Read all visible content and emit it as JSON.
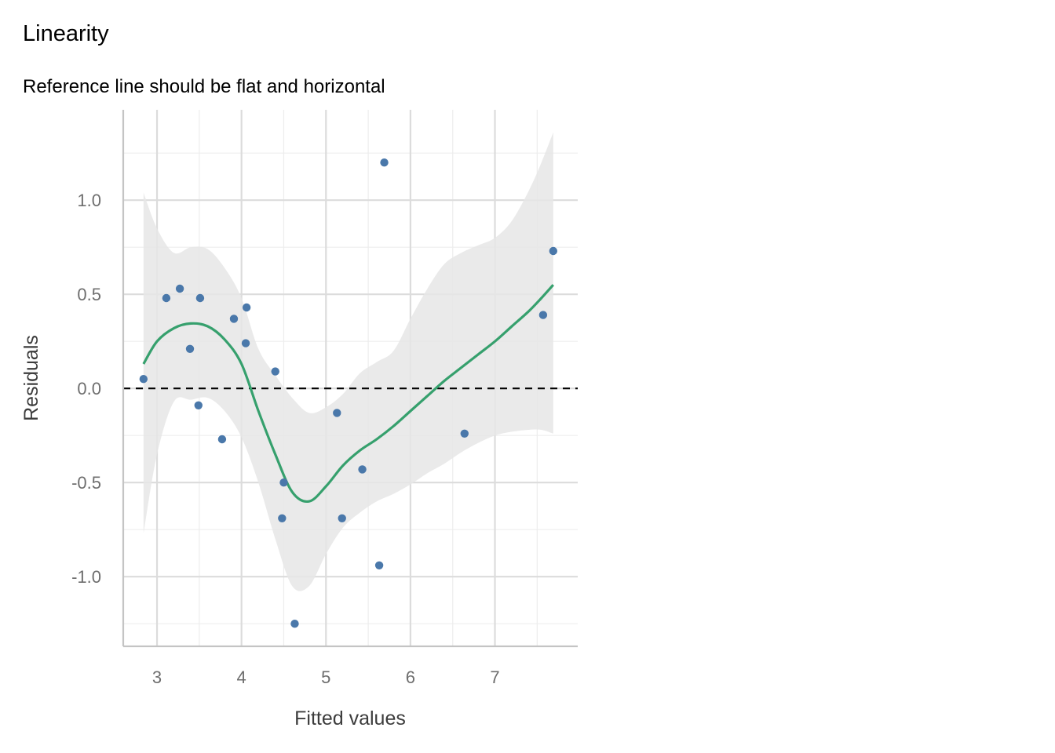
{
  "chart_data": {
    "type": "scatter",
    "title": "Linearity",
    "subtitle": "Reference line should be flat and horizontal",
    "xlabel": "Fitted values",
    "ylabel": "Residuals",
    "xlim": [
      2.6,
      7.98
    ],
    "ylim": [
      -1.37,
      1.48
    ],
    "x_ticks": [
      3,
      4,
      5,
      6,
      7
    ],
    "x_tick_labels": [
      "3",
      "4",
      "5",
      "6",
      "7"
    ],
    "y_ticks": [
      -1.0,
      -0.5,
      0.0,
      0.5,
      1.0
    ],
    "y_tick_labels": [
      "-1.0",
      "-0.5",
      "0.0",
      "0.5",
      "1.0"
    ],
    "grid": true,
    "reference_line": {
      "y": 0,
      "style": "dashed"
    },
    "colors": {
      "points": "#4a78aa",
      "smooth": "#36a06d",
      "band": "#e6e6e6",
      "grid_major": "#dcdcdc",
      "grid_minor": "#ededed",
      "axis": "#c4c4c4",
      "reference": "#000000"
    },
    "points": [
      {
        "x": 2.84,
        "y": 0.05
      },
      {
        "x": 3.11,
        "y": 0.48
      },
      {
        "x": 3.27,
        "y": 0.53
      },
      {
        "x": 3.39,
        "y": 0.21
      },
      {
        "x": 3.49,
        "y": -0.09
      },
      {
        "x": 3.51,
        "y": 0.48
      },
      {
        "x": 3.77,
        "y": -0.27
      },
      {
        "x": 3.91,
        "y": 0.37
      },
      {
        "x": 4.05,
        "y": 0.24
      },
      {
        "x": 4.06,
        "y": 0.43
      },
      {
        "x": 4.4,
        "y": 0.09
      },
      {
        "x": 4.48,
        "y": -0.69
      },
      {
        "x": 4.5,
        "y": -0.5
      },
      {
        "x": 4.63,
        "y": -1.25
      },
      {
        "x": 5.13,
        "y": -0.13
      },
      {
        "x": 5.19,
        "y": -0.69
      },
      {
        "x": 5.43,
        "y": -0.43
      },
      {
        "x": 5.63,
        "y": -0.94
      },
      {
        "x": 5.69,
        "y": 1.2
      },
      {
        "x": 6.64,
        "y": -0.24
      },
      {
        "x": 7.57,
        "y": 0.39
      },
      {
        "x": 7.69,
        "y": 0.73
      }
    ],
    "smooth": [
      {
        "x": 2.84,
        "y": 0.13,
        "lower": -0.77,
        "upper": 1.04
      },
      {
        "x": 3.0,
        "y": 0.25,
        "lower": -0.35,
        "upper": 0.85
      },
      {
        "x": 3.2,
        "y": 0.32,
        "lower": -0.07,
        "upper": 0.72
      },
      {
        "x": 3.4,
        "y": 0.345,
        "lower": -0.06,
        "upper": 0.75
      },
      {
        "x": 3.6,
        "y": 0.33,
        "lower": -0.05,
        "upper": 0.74
      },
      {
        "x": 3.8,
        "y": 0.26,
        "lower": -0.12,
        "upper": 0.64
      },
      {
        "x": 4.0,
        "y": 0.13,
        "lower": -0.26,
        "upper": 0.48
      },
      {
        "x": 4.2,
        "y": -0.12,
        "lower": -0.5,
        "upper": 0.21
      },
      {
        "x": 4.4,
        "y": -0.35,
        "lower": -0.8,
        "upper": 0.07
      },
      {
        "x": 4.6,
        "y": -0.55,
        "lower": -1.05,
        "upper": -0.05
      },
      {
        "x": 4.8,
        "y": -0.6,
        "lower": -1.05,
        "upper": -0.13
      },
      {
        "x": 5.0,
        "y": -0.52,
        "lower": -0.88,
        "upper": -0.1
      },
      {
        "x": 5.2,
        "y": -0.41,
        "lower": -0.74,
        "upper": -0.03
      },
      {
        "x": 5.4,
        "y": -0.33,
        "lower": -0.66,
        "upper": 0.08
      },
      {
        "x": 5.6,
        "y": -0.27,
        "lower": -0.6,
        "upper": 0.14
      },
      {
        "x": 5.8,
        "y": -0.2,
        "lower": -0.56,
        "upper": 0.2
      },
      {
        "x": 6.0,
        "y": -0.12,
        "lower": -0.51,
        "upper": 0.37
      },
      {
        "x": 6.2,
        "y": -0.04,
        "lower": -0.45,
        "upper": 0.53
      },
      {
        "x": 6.4,
        "y": 0.04,
        "lower": -0.4,
        "upper": 0.66
      },
      {
        "x": 6.6,
        "y": 0.11,
        "lower": -0.34,
        "upper": 0.72
      },
      {
        "x": 6.8,
        "y": 0.18,
        "lower": -0.29,
        "upper": 0.76
      },
      {
        "x": 7.0,
        "y": 0.25,
        "lower": -0.25,
        "upper": 0.8
      },
      {
        "x": 7.2,
        "y": 0.33,
        "lower": -0.23,
        "upper": 0.89
      },
      {
        "x": 7.4,
        "y": 0.41,
        "lower": -0.22,
        "upper": 1.05
      },
      {
        "x": 7.55,
        "y": 0.48,
        "lower": -0.22,
        "upper": 1.2
      },
      {
        "x": 7.69,
        "y": 0.55,
        "lower": -0.24,
        "upper": 1.36
      }
    ]
  }
}
